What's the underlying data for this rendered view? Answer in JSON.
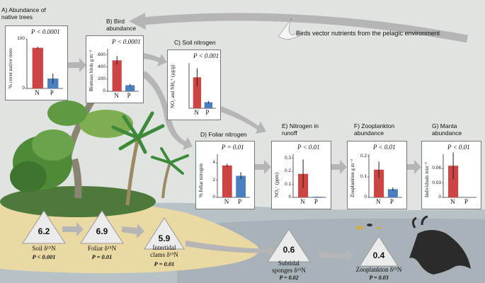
{
  "header": {
    "birds_text": "Birds vector nutrients from the pelagic environment"
  },
  "colors": {
    "native": "#cc4444",
    "palm": "#4a7fc0",
    "ocean": "#b7c1c4",
    "sand": "#e8d9a4",
    "sky": "#dfe4e0"
  },
  "panels": {
    "A": {
      "title": "A) Abundance of\nnative trees",
      "p": "P < 0.0001",
      "ylabel": "% cover native trees",
      "ticks": [
        "0",
        "100"
      ],
      "cats": [
        "N",
        "P"
      ]
    },
    "B": {
      "title": "B) Bird\nabundance",
      "p": "P < 0.0001",
      "ylabel": "Biomass birds g m⁻²",
      "ticks": [
        "0",
        "200",
        "400",
        "600"
      ],
      "cats": [
        "N",
        "P"
      ]
    },
    "C": {
      "title": "C) Soil nitrogen",
      "p": "P < 0.001",
      "ylabel": "NO₃ and NH₄⁺ (μg/g)",
      "ticks": [],
      "cats": [
        "N",
        "P"
      ]
    },
    "D": {
      "title": "D) Foliar nitrogen",
      "p": "P = 0.01",
      "ylabel": "% foliar nitrogen",
      "ticks": [
        "0",
        "2",
        "4"
      ],
      "cats": [
        "N",
        "P"
      ]
    },
    "E": {
      "title": "E) Nitrogen in\nrunoff",
      "p": "P < 0.01",
      "ylabel": "NO₃⁻ (ppm)",
      "ticks": [
        "0",
        "0.1",
        "0.2",
        "0.3"
      ],
      "cats": [
        "N",
        "P"
      ]
    },
    "F": {
      "title": "F) Zooplankton\nabundance",
      "p": "P < 0.01",
      "ylabel": "Zooplankton g m⁻³",
      "ticks": [
        "0",
        "0.1",
        "0.2"
      ],
      "cats": [
        "N",
        "P"
      ]
    },
    "G": {
      "title": "G) Manta\nabundance",
      "p": "P < 0.01",
      "ylabel": "Individuals min⁻¹",
      "ticks": [
        "0",
        "0.03",
        "0.06"
      ],
      "cats": [
        "N",
        "P"
      ]
    }
  },
  "chart_data": [
    {
      "id": "A",
      "type": "bar",
      "categories": [
        "N",
        "P"
      ],
      "values": [
        82,
        20
      ],
      "errors": [
        2,
        10
      ],
      "ylim": [
        0,
        100
      ]
    },
    {
      "id": "B",
      "type": "bar",
      "categories": [
        "N",
        "P"
      ],
      "values": [
        510,
        100
      ],
      "errors": [
        70,
        20
      ],
      "ylim": [
        0,
        700
      ]
    },
    {
      "id": "C",
      "type": "bar",
      "categories": [
        "N",
        "P"
      ],
      "values": [
        205,
        40
      ],
      "errors": [
        60,
        8
      ],
      "ylim": [
        0,
        300
      ]
    },
    {
      "id": "D",
      "type": "bar",
      "categories": [
        "N",
        "P"
      ],
      "values": [
        3.7,
        2.5
      ],
      "errors": [
        0.2,
        0.4
      ],
      "ylim": [
        0,
        5
      ]
    },
    {
      "id": "E",
      "type": "bar",
      "categories": [
        "N",
        "P"
      ],
      "values": [
        0.18,
        0.005
      ],
      "errors": [
        0.11,
        0.002
      ],
      "ylim": [
        0,
        0.33
      ]
    },
    {
      "id": "F",
      "type": "bar",
      "categories": [
        "N",
        "P"
      ],
      "values": [
        0.135,
        0.04
      ],
      "errors": [
        0.04,
        0.008
      ],
      "ylim": [
        0,
        0.21
      ]
    },
    {
      "id": "G",
      "type": "bar",
      "categories": [
        "N",
        "P"
      ],
      "values": [
        0.066,
        0
      ],
      "errors": [
        0.028,
        0
      ],
      "ylim": [
        0,
        0.09
      ]
    }
  ],
  "isotopes": [
    {
      "value": "6.2",
      "label": "Soil δ¹⁵N",
      "p": "P < 0.001"
    },
    {
      "value": "6.9",
      "label": "Foliar δ¹⁵N",
      "p": "P = 0.01"
    },
    {
      "value": "5.9",
      "label": "Intertidal\nclams δ¹⁵N",
      "p": "P = 0.01"
    },
    {
      "value": "0.6",
      "label": "Subtidal\nsponges δ¹⁵N",
      "p": "P = 0.02"
    },
    {
      "value": "0.4",
      "label": "Zooplankton δ¹⁵N",
      "p": "P = 0.03"
    }
  ]
}
